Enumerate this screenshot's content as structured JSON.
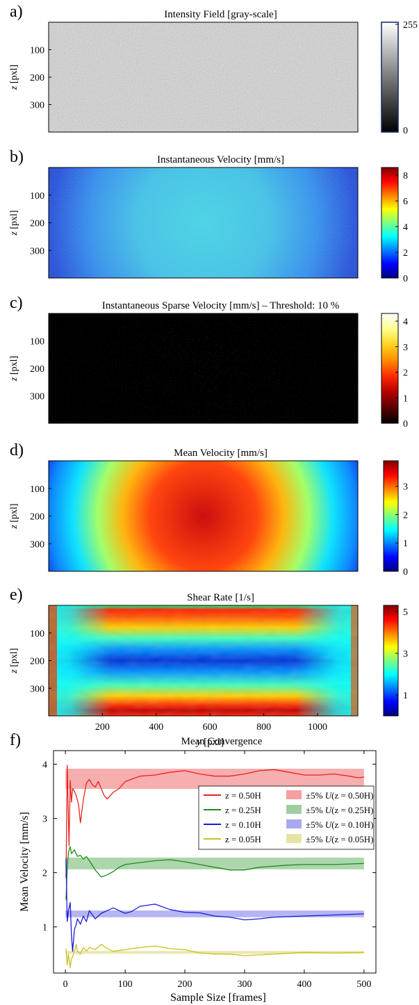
{
  "panels": [
    {
      "letter": "a)",
      "title": "Intensity Field  [gray-scale]",
      "y_label_var": "z",
      "y_label_unit": " [pxl]",
      "y_ticks": [
        "100",
        "200",
        "300"
      ],
      "colorbar": {
        "colormap": "gray",
        "ticks": [
          "255",
          "0"
        ],
        "min": 0,
        "max": 255
      },
      "field": "intensity"
    },
    {
      "letter": "b)",
      "title": "Instantaneous Velocity [mm/s]",
      "y_label_var": "z",
      "y_label_unit": " [pxl]",
      "y_ticks": [
        "100",
        "200",
        "300"
      ],
      "colorbar": {
        "colormap": "jet",
        "ticks": [
          "8",
          "6",
          "4",
          "2",
          "0"
        ],
        "min": 0,
        "max": 8.6
      },
      "field": "instantaneous"
    },
    {
      "letter": "c)",
      "title": "Instantaneous Sparse Velocity [mm/s] – Threshold: 10 %",
      "y_label_var": "z",
      "y_label_unit": " [pxl]",
      "y_ticks": [
        "100",
        "200",
        "300"
      ],
      "colorbar": {
        "colormap": "hot",
        "ticks": [
          "4",
          "3",
          "2",
          "1",
          "0"
        ],
        "min": 0,
        "max": 4.3
      },
      "field": "sparse"
    },
    {
      "letter": "d)",
      "title": "Mean Velocity [mm/s]",
      "y_label_var": "z",
      "y_label_unit": " [pxl]",
      "y_ticks": [
        "100",
        "200",
        "300"
      ],
      "colorbar": {
        "colormap": "jet",
        "ticks": [
          "3",
          "2",
          "1",
          "0"
        ],
        "min": 0,
        "max": 3.9
      },
      "field": "mean"
    },
    {
      "letter": "e)",
      "title": "Shear Rate [1/s]",
      "y_label_var": "z",
      "y_label_unit": " [pxl]",
      "y_ticks": [
        "100",
        "200",
        "300"
      ],
      "x_label_var": "y",
      "x_label_unit": " [pxl]",
      "x_ticks": [
        "200",
        "400",
        "600",
        "800",
        "1000"
      ],
      "colorbar": {
        "colormap": "jet",
        "ticks": [
          "5",
          "3",
          "1"
        ],
        "min": 0,
        "max": 5.3
      },
      "field": "shear"
    }
  ],
  "chart_data": {
    "type": "line",
    "letter": "f)",
    "title": "Mean Convergence",
    "xlabel": "Sample Size [frames]",
    "ylabel": "Mean Velocity [mm/s]",
    "xlim": [
      -20,
      520
    ],
    "ylim": [
      0.15,
      4.25
    ],
    "x_ticks": [
      0,
      100,
      200,
      300,
      400,
      500
    ],
    "y_ticks": [
      1,
      2,
      3,
      4
    ],
    "grid": false,
    "legend_placement": "right, upper-middle",
    "series": [
      {
        "name": "z = 0.50H",
        "color": "#e8231f",
        "band_color": "#f4a0a0",
        "mean": 3.73,
        "x": [
          1,
          3,
          6,
          8,
          10,
          12,
          15,
          18,
          22,
          25,
          30,
          35,
          40,
          45,
          50,
          55,
          60,
          65,
          70,
          80,
          90,
          100,
          110,
          125,
          150,
          175,
          200,
          225,
          250,
          275,
          300,
          325,
          350,
          375,
          400,
          425,
          450,
          475,
          490,
          500
        ],
        "y": [
          1.9,
          3.98,
          2.5,
          3.7,
          3.3,
          3.55,
          3.5,
          3.42,
          3.25,
          2.92,
          3.35,
          3.65,
          3.72,
          3.62,
          3.58,
          3.68,
          3.55,
          3.42,
          3.36,
          3.48,
          3.55,
          3.68,
          3.72,
          3.78,
          3.8,
          3.85,
          3.88,
          3.82,
          3.78,
          3.78,
          3.82,
          3.88,
          3.9,
          3.85,
          3.8,
          3.8,
          3.82,
          3.78,
          3.75,
          3.76
        ]
      },
      {
        "name": "z = 0.25H",
        "color": "#1f8a1f",
        "band_color": "#9fcf9f",
        "mean": 2.17,
        "x": [
          1,
          3,
          5,
          8,
          10,
          15,
          20,
          25,
          30,
          35,
          40,
          50,
          60,
          70,
          80,
          90,
          100,
          120,
          150,
          175,
          200,
          225,
          250,
          275,
          300,
          325,
          350,
          375,
          400,
          450,
          500
        ],
        "y": [
          1.5,
          2.1,
          2.38,
          2.48,
          2.35,
          2.42,
          2.3,
          2.32,
          2.25,
          2.3,
          2.22,
          2.05,
          1.92,
          1.96,
          2.02,
          2.1,
          2.15,
          2.18,
          2.22,
          2.24,
          2.2,
          2.15,
          2.1,
          2.05,
          2.05,
          2.1,
          2.12,
          2.14,
          2.15,
          2.15,
          2.17
        ]
      },
      {
        "name": "z = 0.10H",
        "color": "#1a1ad6",
        "band_color": "#a8a8f2",
        "mean": 1.24,
        "x": [
          1,
          3,
          5,
          8,
          10,
          12,
          15,
          18,
          20,
          25,
          30,
          35,
          40,
          50,
          60,
          70,
          80,
          90,
          100,
          110,
          125,
          150,
          175,
          200,
          225,
          250,
          275,
          300,
          325,
          350,
          400,
          450,
          500
        ],
        "y": [
          2.25,
          1.1,
          1.3,
          1.45,
          0.85,
          0.55,
          0.95,
          1.05,
          1.15,
          1.05,
          1.2,
          1.1,
          1.3,
          1.15,
          1.25,
          1.3,
          1.35,
          1.3,
          1.25,
          1.28,
          1.38,
          1.42,
          1.32,
          1.27,
          1.26,
          1.2,
          1.18,
          1.13,
          1.15,
          1.18,
          1.2,
          1.22,
          1.24
        ]
      },
      {
        "name": "z = 0.05H",
        "color": "#c7c21f",
        "band_color": "#e6e3a6",
        "mean": 0.53,
        "x": [
          1,
          3,
          5,
          8,
          10,
          12,
          15,
          18,
          20,
          25,
          30,
          35,
          40,
          50,
          60,
          70,
          80,
          100,
          125,
          150,
          175,
          200,
          225,
          250,
          275,
          300,
          350,
          400,
          450,
          500
        ],
        "y": [
          0.6,
          0.3,
          0.5,
          0.25,
          0.42,
          0.45,
          0.55,
          0.68,
          0.55,
          0.5,
          0.62,
          0.55,
          0.62,
          0.58,
          0.68,
          0.6,
          0.55,
          0.58,
          0.62,
          0.65,
          0.6,
          0.58,
          0.52,
          0.5,
          0.5,
          0.47,
          0.5,
          0.53,
          0.52,
          0.53
        ]
      }
    ],
    "legend": {
      "line_entries": [
        "z = 0.50H",
        "z = 0.25H",
        "z = 0.10H",
        "z = 0.05H"
      ],
      "band_entries": [
        {
          "prefix": "±5% ",
          "var": "U",
          "suffix": "(z = 0.50H)"
        },
        {
          "prefix": "±5% ",
          "var": "U",
          "suffix": "(z = 0.25H)"
        },
        {
          "prefix": "±5% ",
          "var": "U",
          "suffix": "(z = 0.10H)"
        },
        {
          "prefix": "±5% ",
          "var": "U",
          "suffix": "(z = 0.05H)"
        }
      ]
    }
  },
  "colors": {
    "background": "#ffffff",
    "axis": "#000000",
    "colorbar_a_frame": "#1b2f6b"
  }
}
